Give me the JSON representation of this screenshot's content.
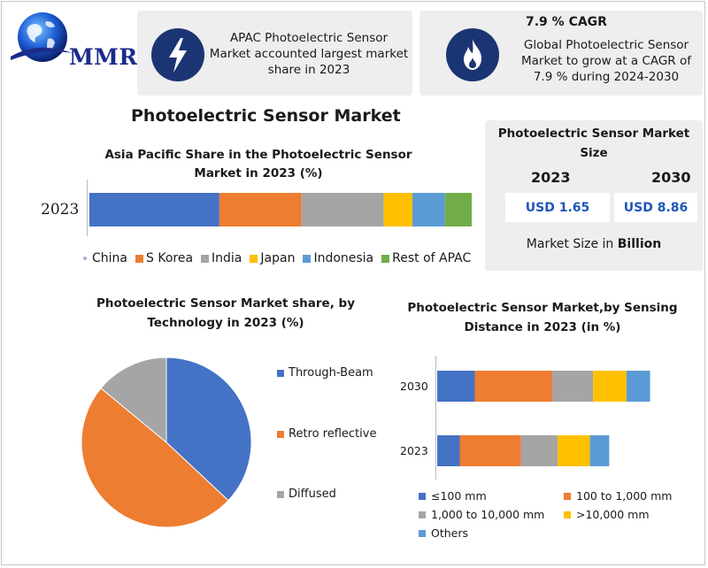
{
  "brand": {
    "logo_text": "MMR"
  },
  "info_boxes": [
    {
      "icon": "lightning-icon",
      "text": "APAC Photoelectric Sensor Market accounted largest market share in 2023"
    },
    {
      "icon": "flame-icon",
      "title": "7.9 % CAGR",
      "text": "Global Photoelectric Sensor Market to grow at a CAGR of 7.9 % during 2024-2030"
    }
  ],
  "main_title": "Photoelectric Sensor Market",
  "market_size": {
    "title": "Photoelectric Sensor Market Size",
    "year_1": "2023",
    "year_2": "2030",
    "value_1": "USD 1.65",
    "value_2": "USD 8.86",
    "note_prefix": "Market Size in",
    "note_unit": "Billion"
  },
  "colors": {
    "blue": "#4472c4",
    "orange": "#ed7d31",
    "gray": "#a5a5a5",
    "yellow": "#ffc000",
    "light_blue": "#5b9bd5",
    "green": "#70ad47",
    "navy": "#1b3473"
  },
  "chart_data": [
    {
      "type": "bar",
      "orientation": "horizontal",
      "stacked": true,
      "title": "Asia Pacific Share in the Photoelectric Sensor Market in 2023 (%)",
      "categories": [
        "2023"
      ],
      "series": [
        {
          "name": "China",
          "values": [
            34
          ],
          "color": "#4472c4"
        },
        {
          "name": "S Korea",
          "values": [
            21.5
          ],
          "color": "#ed7d31"
        },
        {
          "name": "India",
          "values": [
            21.5
          ],
          "color": "#a5a5a5"
        },
        {
          "name": "Japan",
          "values": [
            7.5
          ],
          "color": "#ffc000"
        },
        {
          "name": "Indonesia",
          "values": [
            8.5
          ],
          "color": "#5b9bd5"
        },
        {
          "name": "Rest of APAC",
          "values": [
            7
          ],
          "color": "#70ad47"
        }
      ],
      "legend_position": "bottom"
    },
    {
      "type": "pie",
      "title": "Photoelectric Sensor Market share, by Technology in 2023  (%)",
      "categories": [
        "Through-Beam",
        "Retro reflective",
        "Diffused"
      ],
      "values": [
        37,
        49,
        14
      ],
      "colors": [
        "#4472c4",
        "#ed7d31",
        "#a5a5a5"
      ],
      "legend_position": "right"
    },
    {
      "type": "bar",
      "orientation": "horizontal",
      "stacked": true,
      "title": "Photoelectric Sensor Market,by Sensing Distance in 2023 (in %)",
      "categories": [
        "2030",
        "2023"
      ],
      "series": [
        {
          "name": "≤100  mm",
          "values": [
            17.5,
            10.5
          ],
          "color": "#4472c4"
        },
        {
          "name": "100 to 1,000 mm",
          "values": [
            36,
            28.5
          ],
          "color": "#ed7d31"
        },
        {
          "name": "1,000 to 10,000 mm",
          "values": [
            19,
            17
          ],
          "color": "#a5a5a5"
        },
        {
          "name": ">10,000 mm",
          "values": [
            15.5,
            15
          ],
          "color": "#ffc000"
        },
        {
          "name": "Others",
          "values": [
            11,
            9
          ],
          "color": "#5b9bd5"
        }
      ],
      "legend_position": "bottom"
    }
  ]
}
